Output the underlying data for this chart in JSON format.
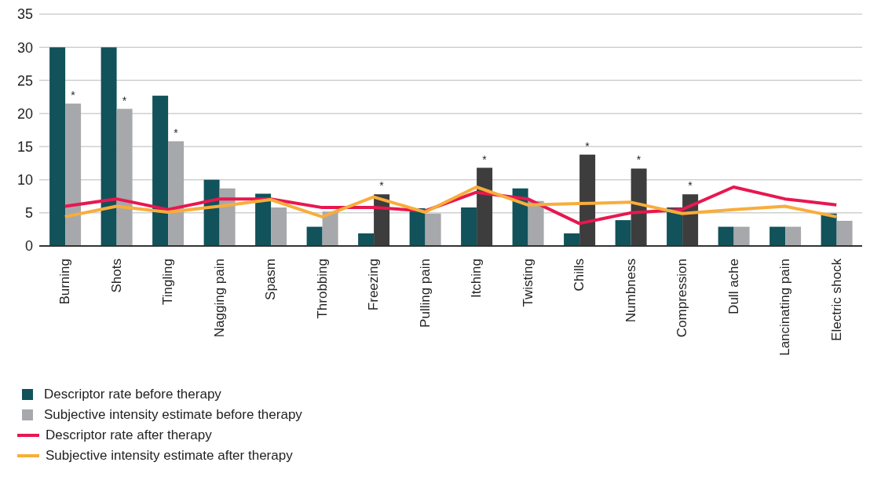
{
  "chart_data": {
    "type": "bar",
    "categories": [
      "Burning",
      "Shots",
      "Tingling",
      "Nagging pain",
      "Spasm",
      "Throbbing",
      "Freezing",
      "Pulling pain",
      "Itching",
      "Twisting",
      "Chills",
      "Numbness",
      "Compression",
      "Dull ache",
      "Lancinating pain",
      "Electric shock"
    ],
    "series": [
      {
        "name": "Descriptor rate before therapy",
        "color": "#12525a",
        "values": [
          30,
          30,
          22.7,
          10,
          7.9,
          2.9,
          1.9,
          5.7,
          5.8,
          8.7,
          1.9,
          3.9,
          5.8,
          2.9,
          2.9,
          4.9
        ]
      },
      {
        "name": "Subjective intensity estimate before therapy",
        "color": "#a7a8ab",
        "colors": [
          "#a7a8ab",
          "#a7a8ab",
          "#a7a8ab",
          "#a7a8ab",
          "#a7a8ab",
          "#a7a8ab",
          "#3d3d3d",
          "#a7a8ab",
          "#3d3d3d",
          "#a7a8ab",
          "#3d3d3d",
          "#3d3d3d",
          "#3d3d3d",
          "#a7a8ab",
          "#a7a8ab",
          "#a7a8ab"
        ],
        "values": [
          21.5,
          20.7,
          15.8,
          8.7,
          5.8,
          5.2,
          7.8,
          4.9,
          11.8,
          6.8,
          13.8,
          11.7,
          7.8,
          2.9,
          2.9,
          3.8
        ]
      },
      {
        "name": "Descriptor rate after therapy",
        "type": "line",
        "color": "#e8174f",
        "values": [
          6.0,
          7.1,
          5.5,
          7.1,
          7.1,
          5.8,
          5.8,
          5.3,
          8.1,
          7.1,
          3.4,
          5.0,
          5.5,
          8.9,
          7.1,
          6.2
        ]
      },
      {
        "name": "Subjective intensity estimate after therapy",
        "type": "line",
        "color": "#f8ad3c",
        "values": [
          4.4,
          6.0,
          5.1,
          6.0,
          7.0,
          4.4,
          7.4,
          5.1,
          8.9,
          6.2,
          6.4,
          6.6,
          4.9,
          5.5,
          6.0,
          4.4
        ]
      }
    ],
    "annotations": [
      {
        "text": "*",
        "x": "Burning",
        "y": 21.5
      },
      {
        "text": "*",
        "x": "Shots",
        "y": 20.7
      },
      {
        "text": "*",
        "x": "Tingling",
        "y": 15.8
      },
      {
        "text": "*",
        "x": "Freezing",
        "y": 7.8
      },
      {
        "text": "*",
        "x": "Itching",
        "y": 11.8
      },
      {
        "text": "*",
        "x": "Chills",
        "y": 13.8
      },
      {
        "text": "*",
        "x": "Numbness",
        "y": 11.7
      },
      {
        "text": "*",
        "x": "Compression",
        "y": 7.8
      }
    ],
    "ylim": [
      0,
      35
    ],
    "yticks": [
      0,
      5,
      10,
      15,
      20,
      25,
      30,
      35
    ],
    "grid": "y",
    "legend": "bottom left",
    "marker": "none"
  }
}
